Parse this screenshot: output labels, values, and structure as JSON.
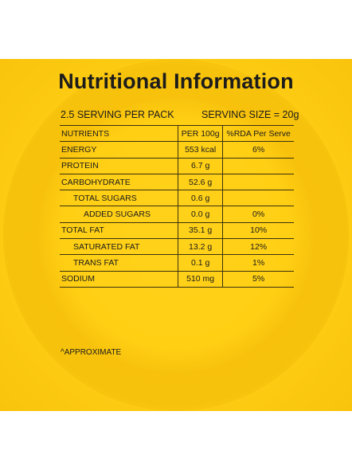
{
  "title": "Nutritional Information",
  "servings_per_pack": "2.5 SERVING PER PACK",
  "serving_size": "SERVING SIZE = 20g",
  "columns": [
    "NUTRIENTS",
    "PER 100g",
    "%RDA Per Serve"
  ],
  "rows": [
    {
      "name": "ENERGY",
      "per100": "553 kcal",
      "rda": "6%"
    },
    {
      "name": "PROTEIN",
      "per100": "6.7 g",
      "rda": ""
    },
    {
      "name": "CARBOHYDRATE",
      "per100": "52.6 g",
      "rda": ""
    },
    {
      "name": "TOTAL SUGARS",
      "per100": "0.6 g",
      "rda": ""
    },
    {
      "name": "ADDED SUGARS",
      "per100": "0.0 g",
      "rda": "0%"
    },
    {
      "name": "TOTAL FAT",
      "per100": "35.1 g",
      "rda": "10%"
    },
    {
      "name": "SATURATED FAT",
      "per100": "13.2 g",
      "rda": "12%"
    },
    {
      "name": "TRANS FAT",
      "per100": "0.1 g",
      "rda": "1%"
    },
    {
      "name": "SODIUM",
      "per100": "510 mg",
      "rda": "5%"
    }
  ],
  "footnote": "^APPROXIMATE",
  "colors": {
    "background": "#ffd21a",
    "text": "#1b1b1b"
  }
}
